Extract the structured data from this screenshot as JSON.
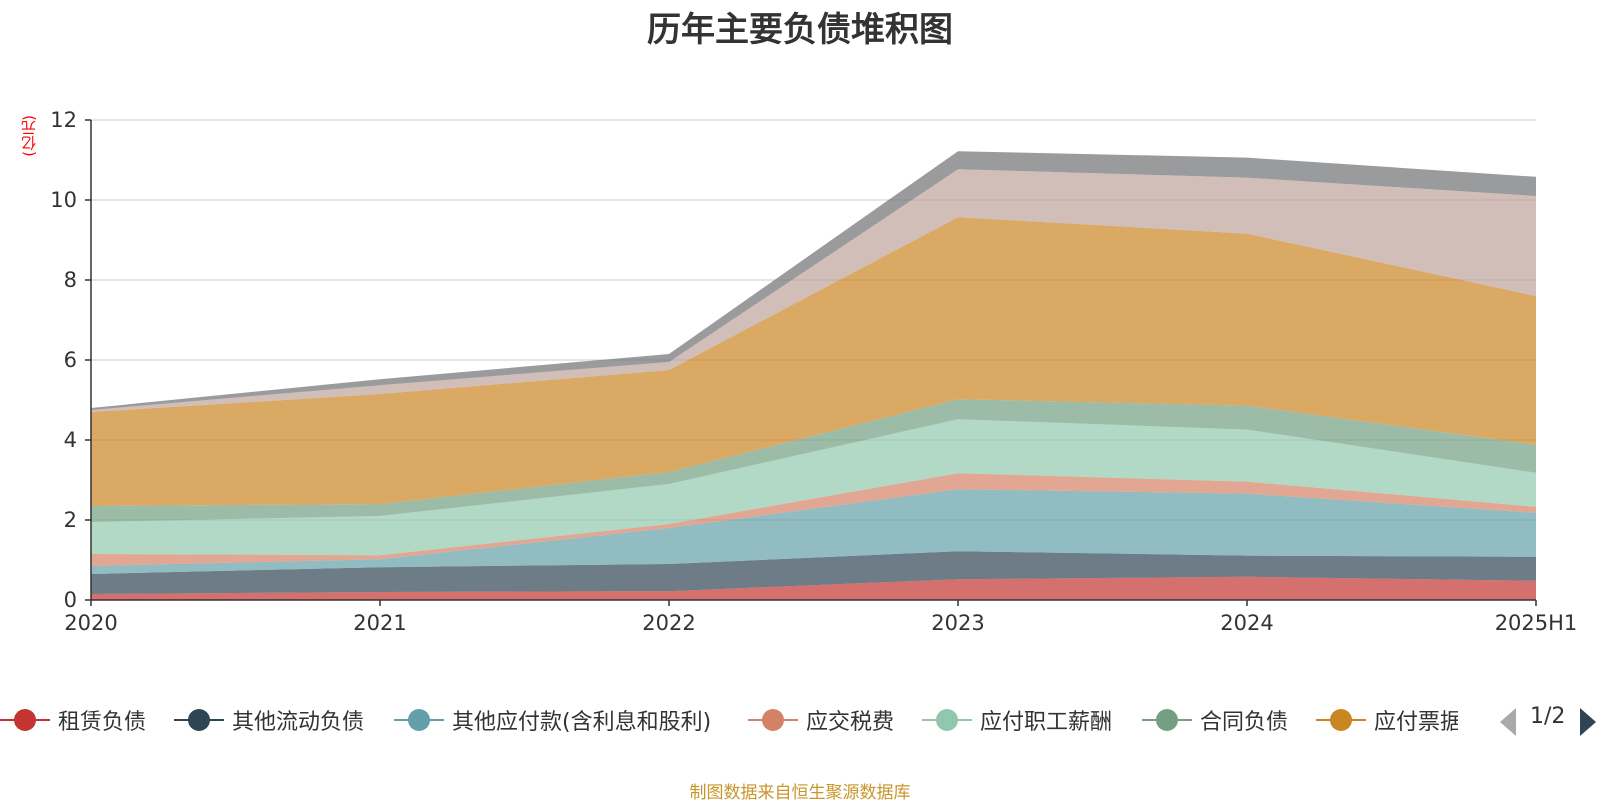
{
  "chart_data": {
    "type": "area",
    "title": "历年主要负债堆积图",
    "ylabel": "(亿元)",
    "ylim": [
      0,
      12
    ],
    "yticks": [
      0,
      2,
      4,
      6,
      8,
      10,
      12
    ],
    "grid": true,
    "stacked": true,
    "categories": [
      "2020",
      "2021",
      "2022",
      "2023",
      "2024",
      "2025H1"
    ],
    "series": [
      {
        "name": "租赁负债",
        "color": "#c23531",
        "values": [
          0.15,
          0.2,
          0.22,
          0.52,
          0.58,
          0.48
        ]
      },
      {
        "name": "其他流动负债",
        "color": "#2f4554",
        "values": [
          0.5,
          0.62,
          0.68,
          0.7,
          0.53,
          0.6
        ]
      },
      {
        "name": "其他应付款(含利息和股利)",
        "color": "#61a0a8",
        "values": [
          0.2,
          0.2,
          0.9,
          1.55,
          1.55,
          1.1
        ]
      },
      {
        "name": "应交税费",
        "color": "#d48265",
        "values": [
          0.3,
          0.1,
          0.1,
          0.4,
          0.3,
          0.15
        ]
      },
      {
        "name": "应付职工薪酬",
        "color": "#91c7ae",
        "values": [
          0.8,
          0.98,
          1.0,
          1.35,
          1.3,
          0.85
        ]
      },
      {
        "name": "合同负债",
        "color": "#749f83",
        "values": [
          0.4,
          0.3,
          0.3,
          0.5,
          0.6,
          0.7
        ]
      },
      {
        "name": "应付票据",
        "color": "#ca8622",
        "values": [
          2.35,
          2.75,
          2.55,
          4.55,
          4.3,
          3.72
        ]
      },
      {
        "name": "",
        "color": "#bda29a",
        "values": [
          0.05,
          0.22,
          0.2,
          1.2,
          1.4,
          2.5
        ]
      },
      {
        "name": "",
        "color": "#6e7074",
        "values": [
          0.05,
          0.15,
          0.2,
          0.45,
          0.5,
          0.48
        ]
      }
    ]
  },
  "legend": {
    "items": [
      {
        "label": "租赁负债",
        "color": "#c23531"
      },
      {
        "label": "其他流动负债",
        "color": "#2f4554"
      },
      {
        "label": "其他应付款(含利息和股利)",
        "color": "#61a0a8"
      },
      {
        "label": "应交税费",
        "color": "#d48265"
      },
      {
        "label": "应付职工薪酬",
        "color": "#91c7ae"
      },
      {
        "label": "合同负债",
        "color": "#749f83"
      },
      {
        "label": "应付票据",
        "color": "#ca8622"
      }
    ],
    "page": "1/2"
  },
  "source": "制图数据来自恒生聚源数据库"
}
